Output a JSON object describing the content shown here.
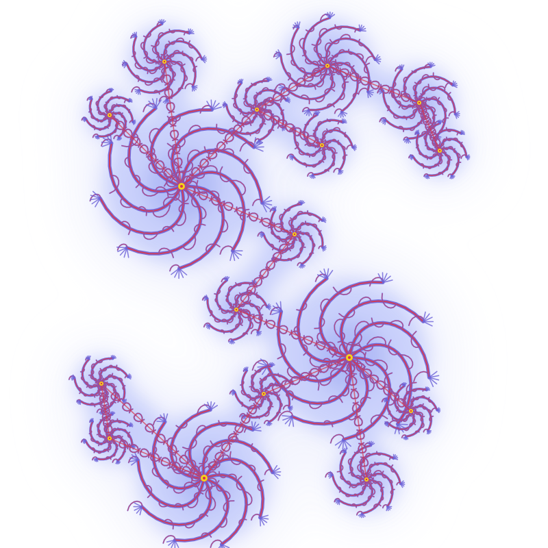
{
  "image": {
    "subject": "julia-set-fractal",
    "colors": {
      "background": "#ffffff",
      "far_halo": "#eef0fd",
      "mid_halo": "#c4ccfb",
      "near_halo": "#8f9cf3",
      "filament": "#6d63d8",
      "filament_core": "#d8364a",
      "spiral_center": "#f5d21c"
    }
  }
}
